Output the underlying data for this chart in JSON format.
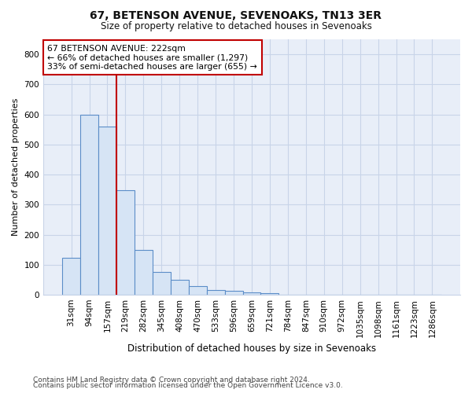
{
  "title": "67, BETENSON AVENUE, SEVENOAKS, TN13 3ER",
  "subtitle": "Size of property relative to detached houses in Sevenoaks",
  "xlabel": "Distribution of detached houses by size in Sevenoaks",
  "ylabel": "Number of detached properties",
  "categories": [
    "31sqm",
    "94sqm",
    "157sqm",
    "219sqm",
    "282sqm",
    "345sqm",
    "408sqm",
    "470sqm",
    "533sqm",
    "596sqm",
    "659sqm",
    "721sqm",
    "784sqm",
    "847sqm",
    "910sqm",
    "972sqm",
    "1035sqm",
    "1098sqm",
    "1161sqm",
    "1223sqm",
    "1286sqm"
  ],
  "values": [
    122,
    600,
    560,
    348,
    150,
    75,
    50,
    30,
    15,
    12,
    8,
    5,
    0,
    0,
    0,
    0,
    0,
    0,
    0,
    0,
    0
  ],
  "bar_color": "#d6e4f5",
  "bar_edge_color": "#5b8dc8",
  "vline_x": 2.5,
  "vline_color": "#c00000",
  "annotation_text": "67 BETENSON AVENUE: 222sqm\n← 66% of detached houses are smaller (1,297)\n33% of semi-detached houses are larger (655) →",
  "annotation_box_color": "#c00000",
  "ylim": [
    0,
    850
  ],
  "yticks": [
    0,
    100,
    200,
    300,
    400,
    500,
    600,
    700,
    800
  ],
  "footer1": "Contains HM Land Registry data © Crown copyright and database right 2024.",
  "footer2": "Contains public sector information licensed under the Open Government Licence v3.0.",
  "background_color": "#ffffff",
  "plot_bg_color": "#e8eef8",
  "grid_color": "#c8d4e8"
}
